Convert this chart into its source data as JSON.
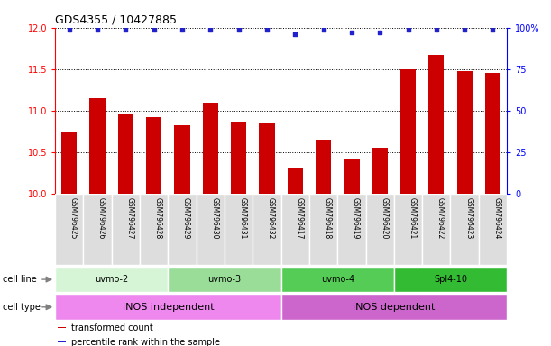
{
  "title": "GDS4355 / 10427885",
  "samples": [
    "GSM796425",
    "GSM796426",
    "GSM796427",
    "GSM796428",
    "GSM796429",
    "GSM796430",
    "GSM796431",
    "GSM796432",
    "GSM796417",
    "GSM796418",
    "GSM796419",
    "GSM796420",
    "GSM796421",
    "GSM796422",
    "GSM796423",
    "GSM796424"
  ],
  "transformed_counts": [
    10.75,
    11.15,
    10.97,
    10.92,
    10.82,
    11.1,
    10.87,
    10.86,
    10.3,
    10.65,
    10.42,
    10.55,
    11.5,
    11.67,
    11.48,
    11.45
  ],
  "percentile_ranks": [
    99,
    99,
    99,
    99,
    99,
    99,
    99,
    99,
    96,
    99,
    97,
    97,
    99,
    99,
    99,
    99
  ],
  "ylim_left": [
    10,
    12
  ],
  "ylim_right": [
    0,
    100
  ],
  "yticks_left": [
    10,
    10.5,
    11,
    11.5,
    12
  ],
  "yticks_right": [
    0,
    25,
    50,
    75,
    100
  ],
  "bar_color": "#cc0000",
  "dot_color": "#2222cc",
  "cell_lines": [
    {
      "label": "uvmo-2",
      "start": 0,
      "end": 4,
      "color": "#d6f5d6"
    },
    {
      "label": "uvmo-3",
      "start": 4,
      "end": 8,
      "color": "#99dd99"
    },
    {
      "label": "uvmo-4",
      "start": 8,
      "end": 12,
      "color": "#55cc55"
    },
    {
      "label": "Spl4-10",
      "start": 12,
      "end": 16,
      "color": "#33bb33"
    }
  ],
  "cell_types": [
    {
      "label": "iNOS independent",
      "start": 0,
      "end": 8,
      "color": "#ee88ee"
    },
    {
      "label": "iNOS dependent",
      "start": 8,
      "end": 16,
      "color": "#cc66cc"
    }
  ],
  "legend_items": [
    {
      "label": "transformed count",
      "color": "#cc0000"
    },
    {
      "label": "percentile rank within the sample",
      "color": "#2222cc"
    }
  ],
  "tick_bg_color": "#dddddd",
  "fig_width": 6.11,
  "fig_height": 3.84,
  "dpi": 100
}
